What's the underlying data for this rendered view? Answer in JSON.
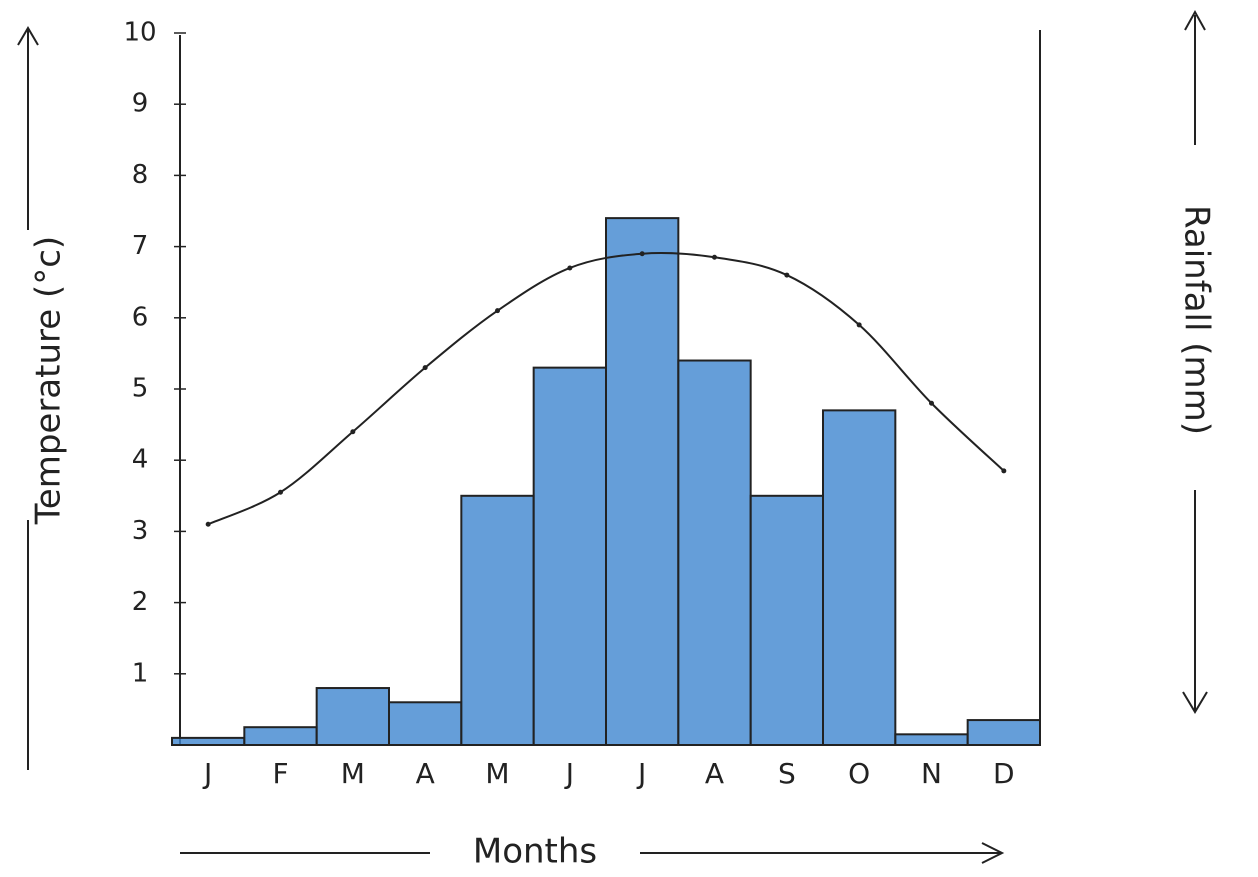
{
  "chart_data": {
    "type": "bar",
    "y_label": "Temperature (°c)",
    "y2_label": "Rainfall (mm)",
    "x_label": "Months",
    "categories": [
      "J",
      "F",
      "M",
      "A",
      "M",
      "J",
      "J",
      "A",
      "S",
      "O",
      "N",
      "D"
    ],
    "ylim": [
      0,
      10
    ],
    "yticks": [
      1,
      2,
      3,
      4,
      5,
      6,
      7,
      8,
      9,
      10
    ],
    "grid": false,
    "series": [
      {
        "type": "bar",
        "color": "#3f86d0",
        "values": [
          0.1,
          0.25,
          0.8,
          0.6,
          3.5,
          5.3,
          7.4,
          5.4,
          3.5,
          4.7,
          0.15,
          0.35
        ]
      },
      {
        "type": "line",
        "color": "#222222",
        "values": [
          3.1,
          3.55,
          4.4,
          5.3,
          6.1,
          6.7,
          6.9,
          6.85,
          6.6,
          5.9,
          4.8,
          3.85
        ]
      }
    ]
  }
}
